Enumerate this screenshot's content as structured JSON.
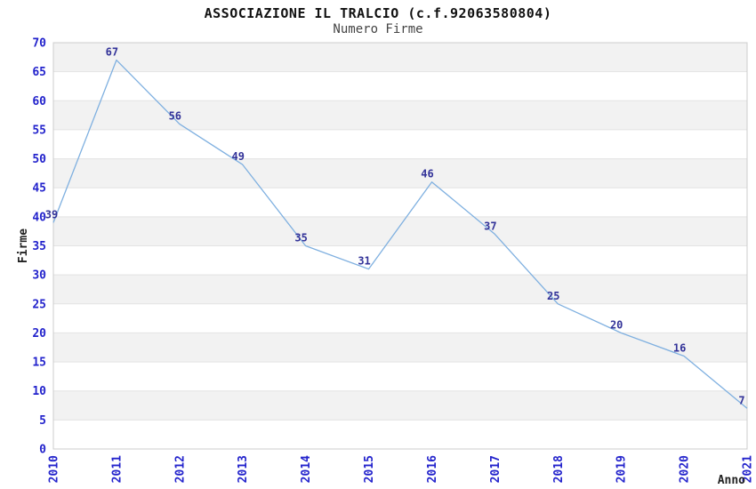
{
  "chart_data": {
    "type": "line",
    "title": "ASSOCIAZIONE IL TRALCIO (c.f.92063580804)",
    "subtitle": "Numero Firme",
    "categories": [
      "2010",
      "2011",
      "2012",
      "2013",
      "2014",
      "2015",
      "2016",
      "2017",
      "2018",
      "2019",
      "2020",
      "2021"
    ],
    "values": [
      39,
      67,
      56,
      49,
      35,
      31,
      46,
      37,
      25,
      20,
      16,
      7
    ],
    "xlabel": "Anno",
    "ylabel": "Firme",
    "ylim": [
      0,
      70
    ],
    "ytick_step": 5,
    "grid": true,
    "legend": "none",
    "value_labels_shown": true,
    "colors": {
      "line": "#7fb0e0",
      "tick_label": "#2323cc",
      "value_label": "#333399",
      "band_fill": "#f2f2f2",
      "grid_line": "#e3e3e3",
      "plot_border": "#cccccc",
      "title_text": "#111111",
      "subtitle_text": "#444444",
      "axis_title_text": "#222222",
      "background": "#ffffff"
    }
  }
}
